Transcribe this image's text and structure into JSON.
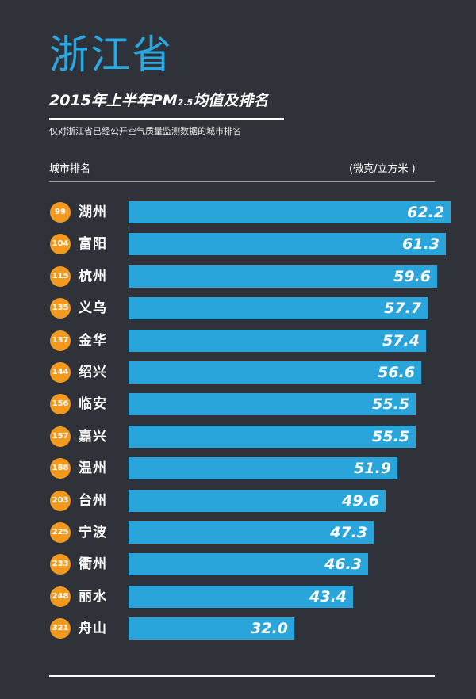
{
  "header": {
    "province": "浙江省",
    "title_main": "2015年上半年PM",
    "title_sub": "2.5",
    "title_end": "均值及排名",
    "subtitle": "仅对浙江省已经公开空气质量监测数据的城市排名",
    "col_left": "城市排名",
    "col_right": "(微克/立方米 )"
  },
  "colors": {
    "bar": "#2aa5dc",
    "rank_badge": "#f39a1e",
    "province_title": "#29a9e1",
    "background": "#2f3238"
  },
  "chart_data": {
    "type": "bar",
    "orientation": "horizontal",
    "title": "2015年上半年PM2.5均值及排名",
    "unit": "微克/立方米",
    "categories": [
      "湖州",
      "富阳",
      "杭州",
      "义乌",
      "金华",
      "绍兴",
      "临安",
      "嘉兴",
      "温州",
      "台州",
      "宁波",
      "衢州",
      "丽水",
      "舟山"
    ],
    "ranks": [
      "99",
      "104",
      "115",
      "135",
      "137",
      "144",
      "156",
      "157",
      "188",
      "203",
      "225",
      "233",
      "248",
      "321"
    ],
    "values": [
      62.2,
      61.3,
      59.6,
      57.7,
      57.4,
      56.6,
      55.5,
      55.5,
      51.9,
      49.6,
      47.3,
      46.3,
      43.4,
      32.0
    ],
    "value_labels": [
      "62.2",
      "61.3",
      "59.6",
      "57.7",
      "57.4",
      "56.6",
      "55.5",
      "55.5",
      "51.9",
      "49.6",
      "47.3",
      "46.3",
      "43.4",
      "32.0"
    ],
    "xlim": [
      0,
      62.2
    ],
    "grid": false,
    "legend": "none"
  }
}
